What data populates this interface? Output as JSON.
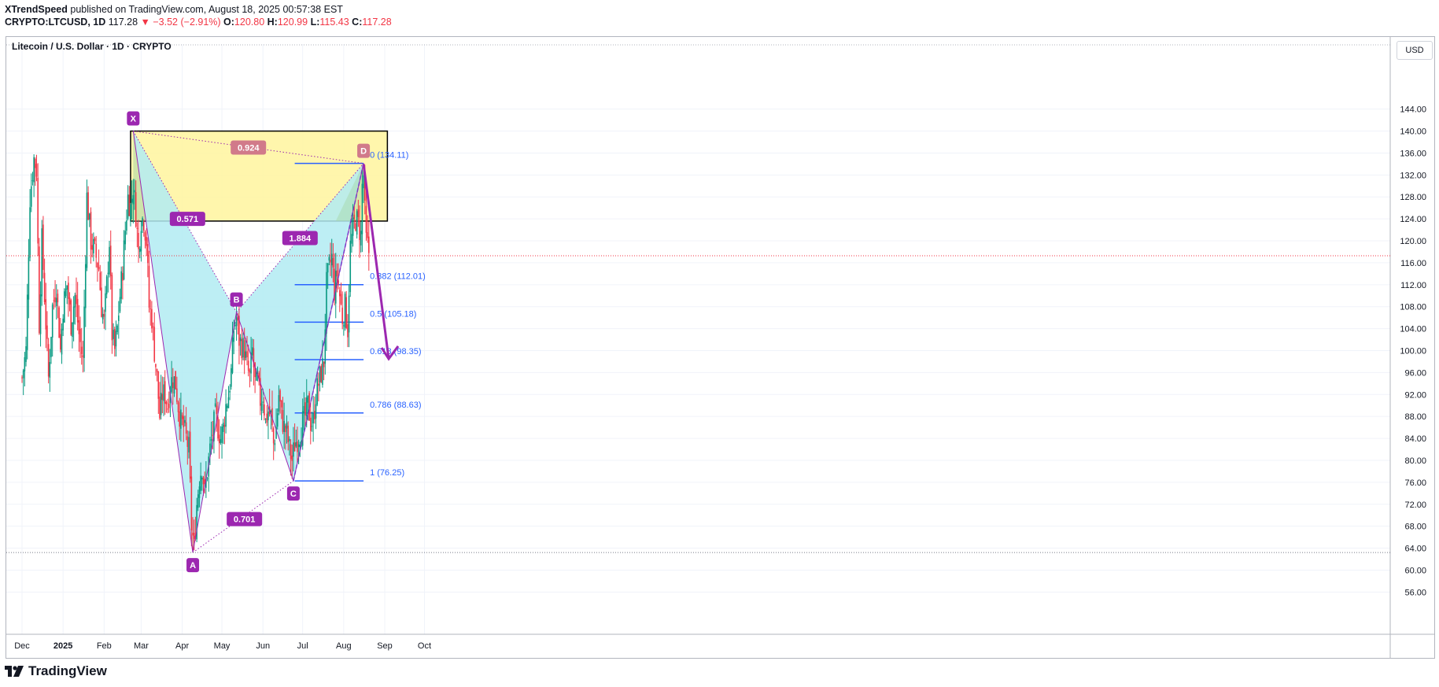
{
  "header": {
    "author": "XTrendSpeed",
    "published": "published on TradingView.com, August 18, 2025 00:57:38 EST",
    "symbol": "CRYPTO:LTCUSD, 1D",
    "last": "117.28",
    "change": "▼ −3.52 (−2.91%)",
    "o_label": "O:",
    "o": "120.80",
    "h_label": "H:",
    "h": "120.99",
    "l_label": "L:",
    "l": "115.43",
    "c_label": "C:",
    "c": "117.28"
  },
  "chart_title": "Litecoin / U.S. Dollar · 1D · CRYPTO",
  "currency_label": "USD",
  "footer": {
    "logo_text": "TradingView"
  },
  "colors": {
    "up": "#089981",
    "down": "#f23645",
    "harmonic_fill": "#b2ebf2",
    "harmonic_line": "#9c27b0",
    "zone_fill": "#fff59d",
    "fib": "#2962ff"
  },
  "chart_data": {
    "type": "candlestick",
    "y_ticks": [
      "144.00",
      "140.00",
      "136.00",
      "132.00",
      "128.00",
      "124.00",
      "120.00",
      "116.00",
      "112.00",
      "108.00",
      "104.00",
      "100.00",
      "96.00",
      "92.00",
      "88.00",
      "84.00",
      "80.00",
      "76.00",
      "72.00",
      "68.00",
      "64.00",
      "60.00",
      "56.00"
    ],
    "ylim": [
      55,
      145
    ],
    "x_ticks": [
      {
        "label": "Dec",
        "i": 0
      },
      {
        "label": "2025",
        "i": 31
      },
      {
        "label": "Feb",
        "i": 62
      },
      {
        "label": "Mar",
        "i": 90
      },
      {
        "label": "Apr",
        "i": 121
      },
      {
        "label": "May",
        "i": 151
      },
      {
        "label": "Jun",
        "i": 182
      },
      {
        "label": "Jul",
        "i": 212
      },
      {
        "label": "Aug",
        "i": 243
      },
      {
        "label": "Sep",
        "i": 274
      },
      {
        "label": "Oct",
        "i": 304
      }
    ],
    "last_price": 117.28,
    "bottom_dotted": 63.2,
    "harmonic": {
      "points": [
        {
          "label": "X",
          "i": 84,
          "price": 140.0
        },
        {
          "label": "A",
          "i": 129,
          "price": 63.2
        },
        {
          "label": "B",
          "i": 162,
          "price": 107.0
        },
        {
          "label": "C",
          "i": 205,
          "price": 76.25
        },
        {
          "label": "D",
          "i": 258,
          "price": 134.11
        }
      ],
      "ratios": [
        {
          "label": "0.571",
          "i": 125,
          "price": 124.0
        },
        {
          "label": "1.884",
          "i": 210,
          "price": 120.5
        },
        {
          "label": "0.924",
          "i": 171,
          "price": 137.0
        },
        {
          "label": "0.701",
          "i": 168,
          "price": 69.3
        }
      ]
    },
    "zone": {
      "i0": 82,
      "i1": 276,
      "top": 140.0,
      "bottom": 123.6
    },
    "fib": {
      "i0": 206,
      "i1": 258,
      "levels": [
        {
          "label": "0 (134.11)",
          "price": 134.11
        },
        {
          "label": "0.382 (112.01)",
          "price": 112.01
        },
        {
          "label": "0.5 (105.18)",
          "price": 105.18
        },
        {
          "label": "0.618 (98.35)",
          "price": 98.35
        },
        {
          "label": "0.786 (88.63)",
          "price": 88.63
        },
        {
          "label": "1 (76.25)",
          "price": 76.25
        }
      ]
    },
    "arrow": {
      "i0": 258,
      "p0": 134.0,
      "i1": 277,
      "p1": 98.5
    },
    "anchors": [
      [
        0,
        95
      ],
      [
        3,
        100
      ],
      [
        6,
        128
      ],
      [
        9,
        135
      ],
      [
        11,
        133
      ],
      [
        13,
        105
      ],
      [
        15,
        120
      ],
      [
        18,
        105
      ],
      [
        20,
        95
      ],
      [
        23,
        108
      ],
      [
        26,
        112
      ],
      [
        29,
        100
      ],
      [
        31,
        108
      ],
      [
        34,
        112
      ],
      [
        37,
        105
      ],
      [
        40,
        110
      ],
      [
        43,
        103
      ],
      [
        46,
        98
      ],
      [
        49,
        128
      ],
      [
        52,
        120
      ],
      [
        55,
        118
      ],
      [
        58,
        115
      ],
      [
        60,
        108
      ],
      [
        62,
        105
      ],
      [
        64,
        112
      ],
      [
        66,
        120
      ],
      [
        68,
        103
      ],
      [
        70,
        100
      ],
      [
        72,
        104
      ],
      [
        74,
        110
      ],
      [
        76,
        115
      ],
      [
        78,
        122
      ],
      [
        80,
        128
      ],
      [
        82,
        126
      ],
      [
        84,
        130
      ],
      [
        86,
        125
      ],
      [
        88,
        118
      ],
      [
        90,
        124
      ],
      [
        92,
        124
      ],
      [
        94,
        120
      ],
      [
        96,
        108
      ],
      [
        98,
        106
      ],
      [
        100,
        100
      ],
      [
        102,
        95
      ],
      [
        104,
        88
      ],
      [
        106,
        92
      ],
      [
        108,
        92
      ],
      [
        110,
        90
      ],
      [
        112,
        94
      ],
      [
        114,
        95
      ],
      [
        116,
        94
      ],
      [
        118,
        90
      ],
      [
        120,
        87
      ],
      [
        122,
        86
      ],
      [
        124,
        84
      ],
      [
        126,
        82
      ],
      [
        128,
        68
      ],
      [
        130,
        64
      ],
      [
        132,
        72
      ],
      [
        134,
        77
      ],
      [
        136,
        79
      ],
      [
        138,
        74
      ],
      [
        140,
        78
      ],
      [
        142,
        82
      ],
      [
        144,
        85
      ],
      [
        146,
        88
      ],
      [
        148,
        86
      ],
      [
        150,
        84
      ],
      [
        152,
        86
      ],
      [
        154,
        90
      ],
      [
        156,
        92
      ],
      [
        158,
        96
      ],
      [
        160,
        104
      ],
      [
        162,
        106
      ],
      [
        164,
        102
      ],
      [
        166,
        101
      ],
      [
        168,
        100
      ],
      [
        170,
        97
      ],
      [
        172,
        95
      ],
      [
        174,
        100
      ],
      [
        176,
        94
      ],
      [
        178,
        94
      ],
      [
        180,
        91
      ],
      [
        182,
        92
      ],
      [
        184,
        87
      ],
      [
        186,
        89
      ],
      [
        188,
        88
      ],
      [
        190,
        83
      ],
      [
        192,
        86
      ],
      [
        194,
        92
      ],
      [
        196,
        88
      ],
      [
        198,
        86
      ],
      [
        200,
        85
      ],
      [
        202,
        82
      ],
      [
        204,
        80
      ],
      [
        206,
        83
      ],
      [
        208,
        84
      ],
      [
        210,
        85
      ],
      [
        212,
        87
      ],
      [
        214,
        88
      ],
      [
        216,
        90
      ],
      [
        218,
        87
      ],
      [
        220,
        87
      ],
      [
        222,
        92
      ],
      [
        224,
        94
      ],
      [
        226,
        96
      ],
      [
        228,
        98
      ],
      [
        230,
        112
      ],
      [
        232,
        115
      ],
      [
        234,
        117
      ],
      [
        236,
        111
      ],
      [
        238,
        114
      ],
      [
        240,
        110
      ],
      [
        242,
        106
      ],
      [
        244,
        108
      ],
      [
        246,
        104
      ],
      [
        248,
        119
      ],
      [
        250,
        122
      ],
      [
        252,
        124
      ],
      [
        254,
        123
      ],
      [
        256,
        121
      ],
      [
        257,
        130
      ],
      [
        258,
        132
      ],
      [
        259,
        125
      ],
      [
        260,
        120
      ],
      [
        261,
        119
      ],
      [
        262,
        118
      ]
    ]
  }
}
